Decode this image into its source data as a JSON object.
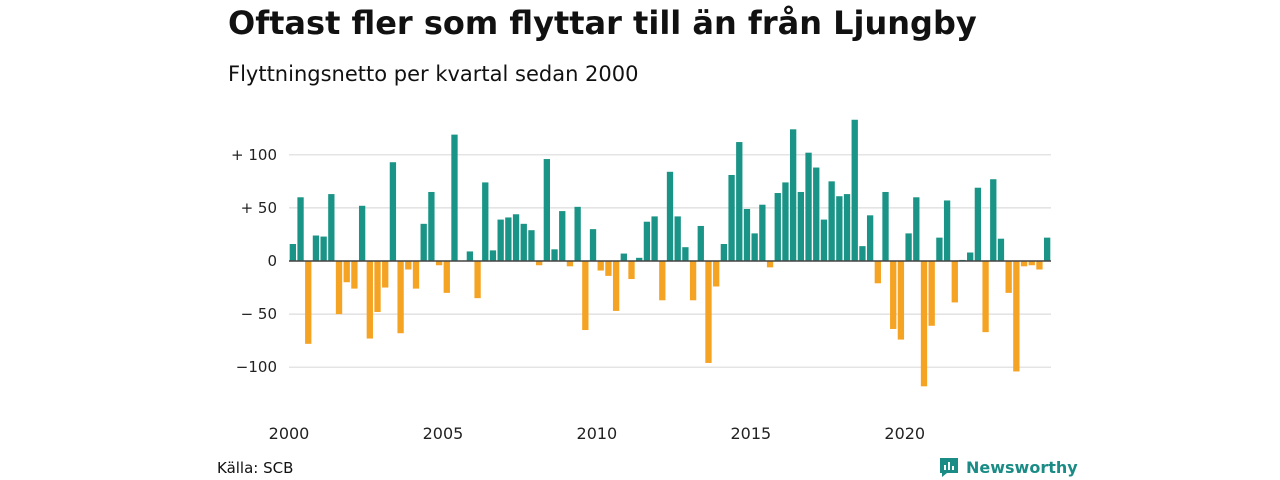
{
  "title": "Oftast fler som flyttar till än från Ljungby",
  "subtitle": "Flyttningsnetto per kvartal sedan 2000",
  "source": "Källa: SCB",
  "brand": {
    "name": "Newsworthy",
    "color": "#1a8c85",
    "icon": "newsworthy-logo-icon"
  },
  "colors": {
    "positive": "#1a9486",
    "negative": "#f5a323",
    "grid": "#dcdcdc",
    "axis": "#444444"
  },
  "chart_data": {
    "type": "bar",
    "title": "Oftast fler som flyttar till än från Ljungby",
    "subtitle": "Flyttningsnetto per kvartal sedan 2000",
    "x_start": "2000 Q1",
    "x_tick_labels": [
      "2000",
      "2005",
      "2010",
      "2015",
      "2020"
    ],
    "y_ticks": [
      {
        "value": 100,
        "label": "+ 100"
      },
      {
        "value": 50,
        "label": "+  50"
      },
      {
        "value": 0,
        "label": "0"
      },
      {
        "value": -50,
        "label": "− 50"
      },
      {
        "value": -100,
        "label": "−100"
      }
    ],
    "ylim": [
      -120,
      135
    ],
    "grid": true,
    "values": [
      16,
      60,
      -78,
      24,
      23,
      63,
      -50,
      -20,
      -26,
      52,
      -73,
      -48,
      -25,
      93,
      -68,
      -8,
      -26,
      35,
      65,
      -4,
      -30,
      119,
      0,
      9,
      -35,
      74,
      10,
      39,
      41,
      44,
      35,
      29,
      -4,
      96,
      11,
      47,
      -5,
      51,
      -65,
      30,
      -9,
      -14,
      -47,
      7,
      -17,
      3,
      37,
      42,
      -37,
      84,
      42,
      13,
      -37,
      33,
      -96,
      -24,
      16,
      81,
      112,
      49,
      26,
      53,
      -6,
      64,
      74,
      124,
      65,
      102,
      88,
      39,
      75,
      61,
      63,
      133,
      14,
      43,
      -21,
      65,
      -64,
      -74,
      26,
      60,
      -118,
      -61,
      22,
      57,
      -39,
      1,
      8,
      69,
      -67,
      77,
      21,
      -30,
      -104,
      -5,
      -4,
      -8,
      22
    ]
  }
}
